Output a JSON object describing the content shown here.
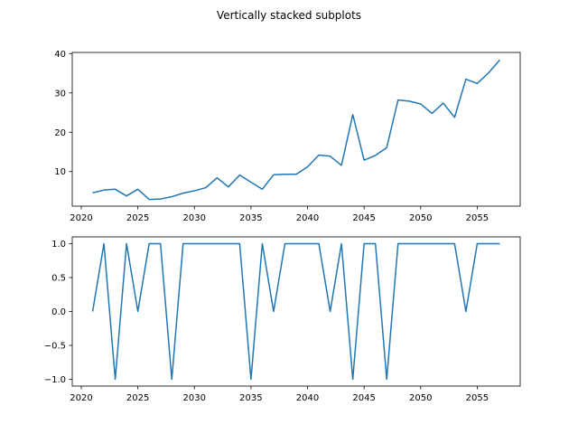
{
  "figure": {
    "suptitle": "Vertically stacked subplots"
  },
  "chart_data": [
    {
      "type": "line",
      "title": "",
      "xlabel": "",
      "ylabel": "",
      "xlim": [
        2019.2,
        2058.8
      ],
      "ylim": [
        1.2,
        40.3
      ],
      "grid": false,
      "color": "#1f77b4",
      "x_ticks": [
        2020,
        2025,
        2030,
        2035,
        2040,
        2045,
        2050,
        2055
      ],
      "y_ticks": [
        10,
        20,
        30,
        40
      ],
      "x": [
        2021,
        2022,
        2023,
        2024,
        2025,
        2026,
        2027,
        2028,
        2029,
        2030,
        2031,
        2032,
        2033,
        2034,
        2035,
        2036,
        2037,
        2038,
        2039,
        2040,
        2041,
        2042,
        2043,
        2044,
        2045,
        2046,
        2047,
        2048,
        2049,
        2050,
        2051,
        2052,
        2053,
        2054,
        2055,
        2056,
        2057
      ],
      "y": [
        4.6,
        5.3,
        5.5,
        3.8,
        5.5,
        2.9,
        3.0,
        3.6,
        4.5,
        5.1,
        5.9,
        8.4,
        6.1,
        9.1,
        7.3,
        5.5,
        9.2,
        9.3,
        9.3,
        11.2,
        14.2,
        13.9,
        11.6,
        24.5,
        12.9,
        14.1,
        16.1,
        28.2,
        27.9,
        27.2,
        24.8,
        27.4,
        23.8,
        33.5,
        32.4,
        35.1,
        38.4
      ]
    },
    {
      "type": "line",
      "title": "",
      "xlabel": "",
      "ylabel": "",
      "xlim": [
        2019.2,
        2058.8
      ],
      "ylim": [
        -1.1,
        1.1
      ],
      "grid": false,
      "color": "#1f77b4",
      "x_ticks": [
        2020,
        2025,
        2030,
        2035,
        2040,
        2045,
        2050,
        2055
      ],
      "y_ticks": [
        -1.0,
        -0.5,
        0.0,
        0.5,
        1.0
      ],
      "x": [
        2021,
        2022,
        2023,
        2024,
        2025,
        2026,
        2027,
        2028,
        2029,
        2030,
        2031,
        2032,
        2033,
        2034,
        2035,
        2036,
        2037,
        2038,
        2039,
        2040,
        2041,
        2042,
        2043,
        2044,
        2045,
        2046,
        2047,
        2048,
        2049,
        2050,
        2051,
        2052,
        2053,
        2054,
        2055,
        2056,
        2057
      ],
      "y": [
        0,
        1,
        -1,
        1,
        0,
        1,
        1,
        -1,
        1,
        1,
        1,
        1,
        1,
        1,
        -1,
        1,
        0,
        1,
        1,
        1,
        1,
        0,
        1,
        -1,
        1,
        1,
        -1,
        1,
        1,
        1,
        1,
        1,
        1,
        0,
        1,
        1,
        1
      ]
    }
  ]
}
